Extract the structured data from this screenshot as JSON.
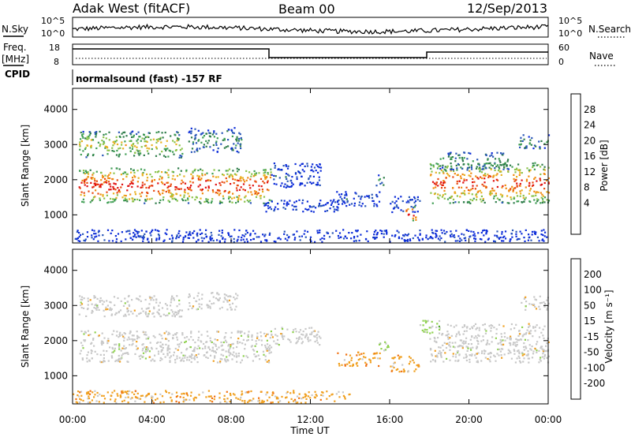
{
  "header": {
    "station": "Adak West (fitACF)",
    "beam": "Beam 00",
    "date": "12/Sep/2013"
  },
  "noise_panel": {
    "left_label": "N.Sky",
    "right_label": "N.Search",
    "left_ticks": [
      "10^5",
      "10^0"
    ],
    "right_ticks": [
      "10^5",
      "10^0"
    ]
  },
  "freq_panel": {
    "left_label_1": "Freq.",
    "left_label_2": "[MHz]",
    "right_label": "Nave",
    "left_ticks": [
      "18",
      "8"
    ],
    "right_ticks": [
      "60",
      "0"
    ]
  },
  "cpid_panel": {
    "label": "CPID",
    "text": "normalsound (fast) -157 RF"
  },
  "x_axis": {
    "label": "Time UT",
    "ticks": [
      "00:00",
      "04:00",
      "08:00",
      "12:00",
      "16:00",
      "20:00",
      "00:00"
    ]
  },
  "chart_data": [
    {
      "type": "heatmap",
      "panel": "power",
      "ylabel": "Slant Range [km]",
      "y_ticks": [
        "4000",
        "3000",
        "2000",
        "1000"
      ],
      "colorbar_label": "Power [dB]",
      "colorbar_ticks": [
        "28",
        "24",
        "20",
        "16",
        "12",
        "8",
        "4"
      ],
      "colors": [
        "#0b2bd8",
        "#2a57b8",
        "#2f7d4a",
        "#3f9e54",
        "#8bc34a",
        "#e8b020",
        "#f08a10",
        "#e84a10",
        "#e01010"
      ],
      "xlim_hours": [
        0,
        24
      ],
      "ylim_km": [
        200,
        4600
      ],
      "bands": [
        {
          "t0": 0.3,
          "t1": 10.0,
          "r0": 1350,
          "r1": 2350,
          "level": 0.9
        },
        {
          "t0": 0.3,
          "t1": 5.5,
          "r0": 2650,
          "r1": 3400,
          "level": 0.55
        },
        {
          "t0": 5.8,
          "t1": 8.5,
          "r0": 2800,
          "r1": 3500,
          "level": 0.3
        },
        {
          "t0": 10.0,
          "t1": 12.5,
          "r0": 1800,
          "r1": 2500,
          "level": 0.12
        },
        {
          "t0": 9.5,
          "t1": 13.5,
          "r0": 1100,
          "r1": 1450,
          "level": 0.08
        },
        {
          "t0": 13.3,
          "t1": 15.5,
          "r0": 1250,
          "r1": 1700,
          "level": 0.15
        },
        {
          "t0": 15.3,
          "t1": 15.7,
          "r0": 1800,
          "r1": 2150,
          "level": 0.3
        },
        {
          "t0": 16.0,
          "t1": 17.5,
          "r0": 1100,
          "r1": 1550,
          "level": 0.12
        },
        {
          "t0": 16.8,
          "t1": 17.3,
          "r0": 800,
          "r1": 1300,
          "level": 1.0
        },
        {
          "t0": 18.0,
          "t1": 24.0,
          "r0": 1350,
          "r1": 2500,
          "level": 0.85
        },
        {
          "t0": 18.5,
          "t1": 22.0,
          "r0": 2300,
          "r1": 2800,
          "level": 0.35
        },
        {
          "t0": 22.5,
          "t1": 24.0,
          "r0": 2900,
          "r1": 3300,
          "level": 0.3
        },
        {
          "t0": 0.0,
          "t1": 24.0,
          "r0": 250,
          "r1": 600,
          "level": 0.05
        }
      ]
    },
    {
      "type": "heatmap",
      "panel": "velocity",
      "ylabel": "Slant Range [km]",
      "y_ticks": [
        "4000",
        "3000",
        "2000",
        "1000"
      ],
      "colorbar_label": "Velocity [m s⁻¹]",
      "colorbar_ticks": [
        "200",
        "100",
        "50",
        "15",
        "-15",
        "-50",
        "-100",
        "-200"
      ],
      "colors": [
        "#2040c0",
        "#2f7d4a",
        "#55aa33",
        "#8fd14f",
        "#c8c8c8",
        "#f0a020",
        "#f07010",
        "#e02010",
        "#e01010"
      ],
      "xlim_hours": [
        0,
        24
      ],
      "ylim_km": [
        200,
        4600
      ],
      "bands": [
        {
          "t0": 0.3,
          "t1": 10.0,
          "r0": 1400,
          "r1": 2300,
          "level": 0.0
        },
        {
          "t0": 0.3,
          "t1": 5.5,
          "r0": 2700,
          "r1": 3300,
          "level": 0.0
        },
        {
          "t0": 5.8,
          "t1": 8.3,
          "r0": 2900,
          "r1": 3400,
          "level": 0.0
        },
        {
          "t0": 10.0,
          "t1": 12.5,
          "r0": 1900,
          "r1": 2400,
          "level": 0.0
        },
        {
          "t0": 13.3,
          "t1": 15.5,
          "r0": 1300,
          "r1": 1700,
          "level": -0.5
        },
        {
          "t0": 16.0,
          "t1": 17.5,
          "r0": 1100,
          "r1": 1600,
          "level": -0.5
        },
        {
          "t0": 15.3,
          "t1": 16.0,
          "r0": 1700,
          "r1": 2000,
          "level": 0.5
        },
        {
          "t0": 18.0,
          "t1": 24.0,
          "r0": 1400,
          "r1": 2500,
          "level": 0.0
        },
        {
          "t0": 17.5,
          "t1": 18.5,
          "r0": 2200,
          "r1": 2600,
          "level": 0.6
        },
        {
          "t0": 22.5,
          "t1": 24.0,
          "r0": 2900,
          "r1": 3300,
          "level": 0.0
        },
        {
          "t0": 0.0,
          "t1": 14.0,
          "r0": 250,
          "r1": 600,
          "level": -0.5
        }
      ]
    }
  ]
}
